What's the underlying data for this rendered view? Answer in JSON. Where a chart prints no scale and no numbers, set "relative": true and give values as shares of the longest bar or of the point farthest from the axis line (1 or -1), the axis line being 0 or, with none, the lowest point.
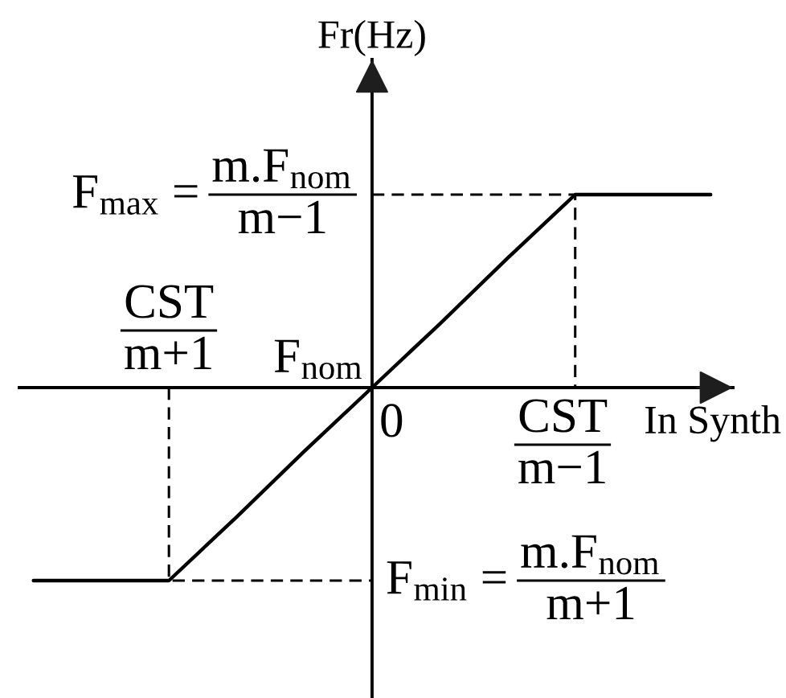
{
  "chart_data": {
    "type": "line",
    "relative": true,
    "xlabel": "In Synth",
    "ylabel": "Fr(Hz)",
    "categories": [
      null,
      null,
      null,
      null,
      null,
      null,
      null,
      null,
      null,
      null,
      null
    ],
    "series": [
      {
        "color": "#000000",
        "line_style": "solid",
        "values": [
          -1,
          -1,
          -1,
          -0.67,
          -0.33,
          0,
          0.33,
          0.67,
          1,
          1,
          1
        ]
      },
      {
        "type": "step",
        "color": "#000000",
        "line_style": "dashed",
        "values": [
          null,
          null,
          null,
          null,
          null,
          1,
          1,
          1,
          0,
          null,
          null
        ]
      },
      {
        "type": "step",
        "color": "#000000",
        "line_style": "dashed",
        "values": [
          null,
          null,
          0,
          -1,
          -1,
          -1,
          null,
          null,
          null,
          null,
          null
        ]
      }
    ],
    "annotations": [
      "F$_{max}$ =\nm.F$_{nom}$\nm−1",
      "CST\nm+1",
      "F$_{nom}$",
      "0",
      "CST\nm−1",
      "F$_{min}$ =\nm.F$_{nom}$\nm+1"
    ]
  }
}
